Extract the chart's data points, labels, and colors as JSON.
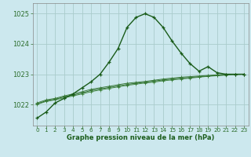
{
  "background_color": "#cce8ee",
  "grid_color": "#aacccc",
  "line_color_main": "#1a5c1a",
  "line_color_flat1": "#3a7a3a",
  "line_color_flat2": "#4a8c4a",
  "line_color_flat3": "#2d6e2d",
  "xlabel": "Graphe pression niveau de la mer (hPa)",
  "xlim": [
    -0.5,
    23.5
  ],
  "ylim": [
    1021.3,
    1025.35
  ],
  "yticks": [
    1022,
    1023,
    1024,
    1025
  ],
  "xticks": [
    0,
    1,
    2,
    3,
    4,
    5,
    6,
    7,
    8,
    9,
    10,
    11,
    12,
    13,
    14,
    15,
    16,
    17,
    18,
    19,
    20,
    21,
    22,
    23
  ],
  "x": [
    0,
    1,
    2,
    3,
    4,
    5,
    6,
    7,
    8,
    9,
    10,
    11,
    12,
    13,
    14,
    15,
    16,
    17,
    18,
    19,
    20,
    21,
    22,
    23
  ],
  "values_main": [
    1021.55,
    1021.75,
    1022.05,
    1022.2,
    1022.35,
    1022.55,
    1022.75,
    1023.0,
    1023.4,
    1023.85,
    1024.55,
    1024.88,
    1025.0,
    1024.88,
    1024.55,
    1024.1,
    1023.7,
    1023.35,
    1023.1,
    1023.25,
    1023.05,
    1023.0,
    1023.0,
    1023.0
  ],
  "values_flat1": [
    1022.05,
    1022.15,
    1022.2,
    1022.28,
    1022.35,
    1022.42,
    1022.5,
    1022.55,
    1022.6,
    1022.65,
    1022.7,
    1022.73,
    1022.76,
    1022.8,
    1022.84,
    1022.87,
    1022.9,
    1022.92,
    1022.94,
    1022.96,
    1022.98,
    1023.0,
    1023.0,
    1023.0
  ],
  "values_flat2": [
    1022.0,
    1022.1,
    1022.15,
    1022.22,
    1022.28,
    1022.35,
    1022.42,
    1022.48,
    1022.53,
    1022.58,
    1022.63,
    1022.67,
    1022.71,
    1022.74,
    1022.78,
    1022.81,
    1022.84,
    1022.87,
    1022.9,
    1022.93,
    1022.95,
    1022.97,
    1022.99,
    1023.0
  ],
  "values_flat3": [
    1022.02,
    1022.12,
    1022.17,
    1022.25,
    1022.31,
    1022.38,
    1022.46,
    1022.51,
    1022.56,
    1022.61,
    1022.66,
    1022.7,
    1022.73,
    1022.77,
    1022.81,
    1022.84,
    1022.87,
    1022.89,
    1022.92,
    1022.94,
    1022.96,
    1022.98,
    1022.99,
    1023.0
  ]
}
